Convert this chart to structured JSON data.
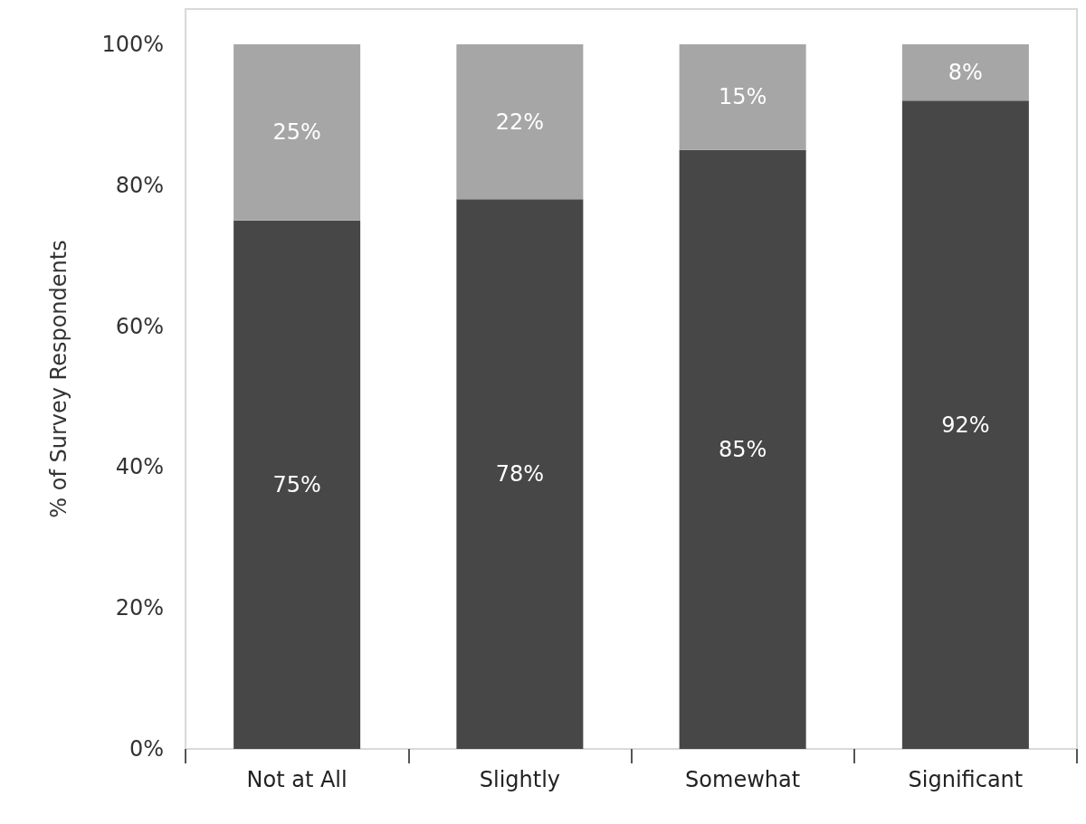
{
  "chart_data": {
    "type": "bar",
    "stacked": true,
    "ylabel": "% of Survey Respondents",
    "categories": [
      "Not at All",
      "Slightly",
      "Somewhat",
      "Significant"
    ],
    "series": [
      {
        "color": "#474747",
        "values": [
          75,
          78,
          85,
          92
        ],
        "value_labels": [
          "75%",
          "78%",
          "85%",
          "92%"
        ]
      },
      {
        "color": "#a6a6a6",
        "values": [
          25,
          22,
          15,
          8
        ],
        "value_labels": [
          "25%",
          "22%",
          "15%",
          "8%"
        ]
      }
    ],
    "ylim": [
      0,
      105
    ],
    "yticks": [
      {
        "value": 0,
        "label": "0%"
      },
      {
        "value": 20,
        "label": "20%"
      },
      {
        "value": 40,
        "label": "40%"
      },
      {
        "value": 60,
        "label": "60%"
      },
      {
        "value": 80,
        "label": "80%"
      },
      {
        "value": 100,
        "label": "100%"
      }
    ],
    "grid": false
  }
}
